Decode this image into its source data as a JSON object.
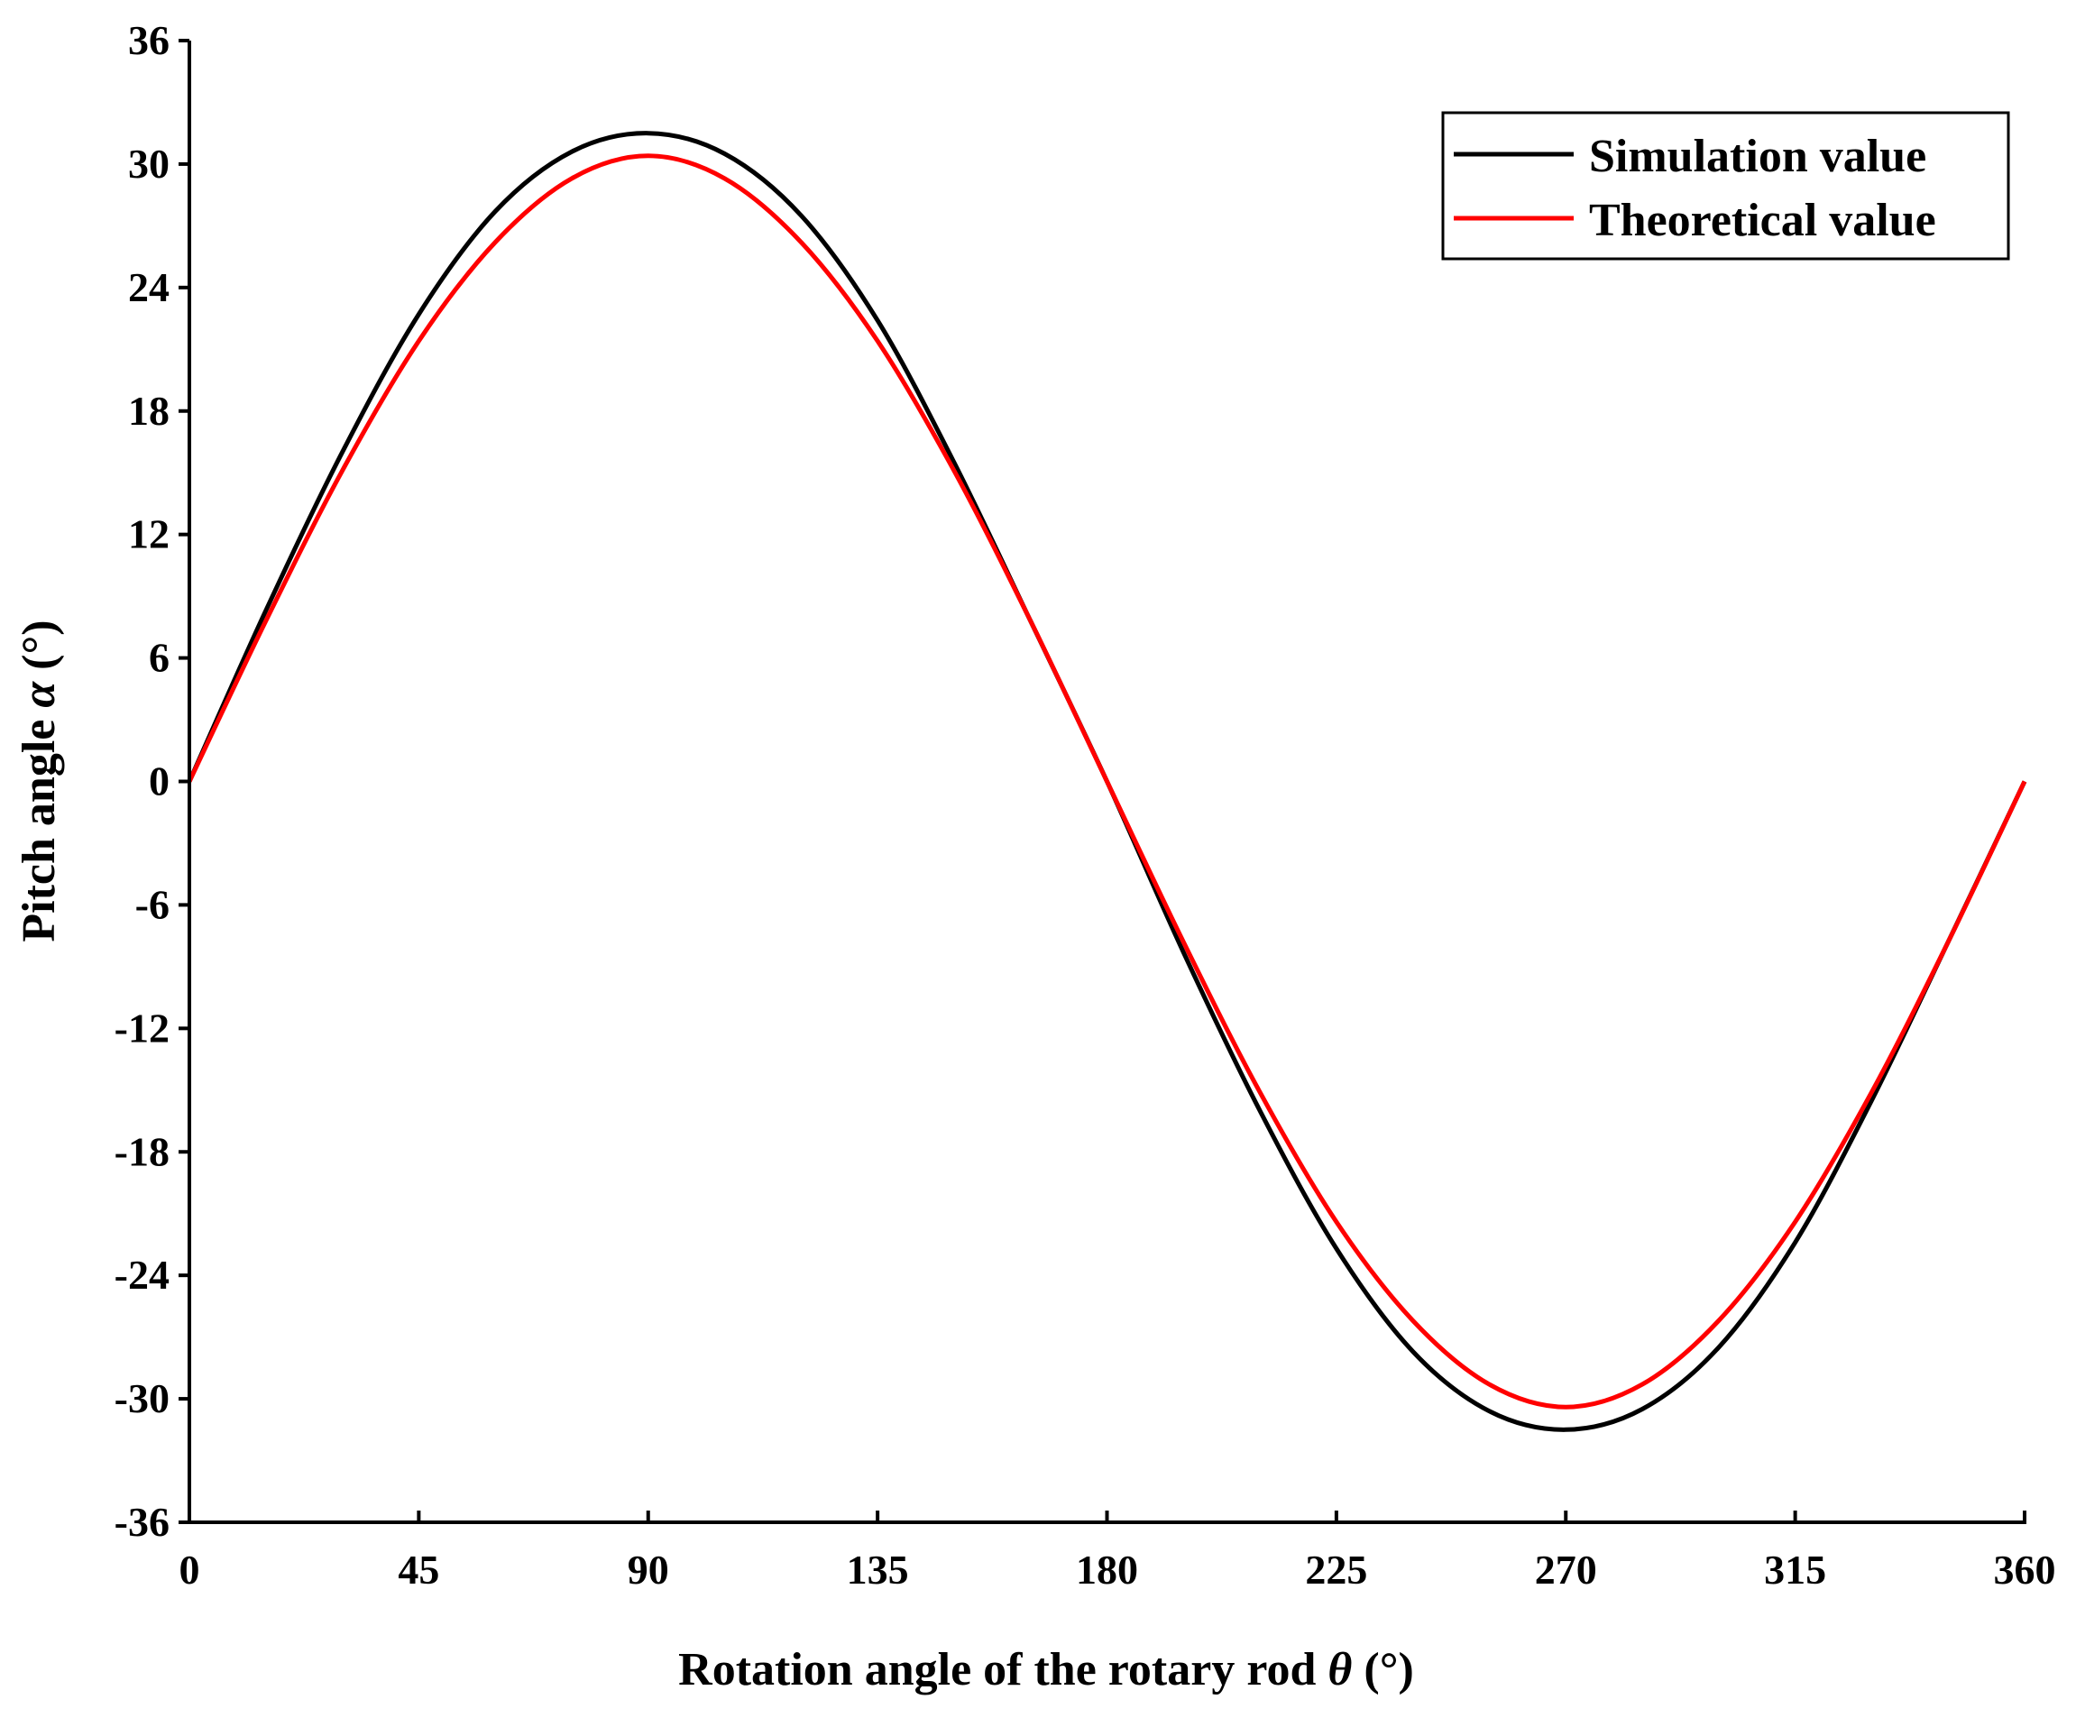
{
  "chart_data": {
    "type": "line",
    "title": "",
    "xlabel": "Rotation angle of the rotary rod",
    "xlabel_symbol": "θ",
    "xlabel_unit": " (°)",
    "ylabel": "Pitch angle",
    "ylabel_symbol": "α",
    "ylabel_unit": " (°)",
    "xlim": [
      0,
      360
    ],
    "ylim": [
      -36,
      36
    ],
    "xticks": [
      0,
      45,
      90,
      135,
      180,
      225,
      270,
      315,
      360
    ],
    "yticks": [
      -36,
      -30,
      -24,
      -18,
      -12,
      -6,
      0,
      6,
      12,
      18,
      24,
      30,
      36
    ],
    "grid": false,
    "legend_position": "top-right",
    "x": [
      0,
      15,
      30,
      45,
      60,
      75,
      90,
      105,
      120,
      135,
      150,
      165,
      180,
      195,
      210,
      225,
      240,
      255,
      270,
      285,
      300,
      315,
      330,
      345,
      360
    ],
    "series": [
      {
        "name": "Simulation value",
        "color": "#000000",
        "values": [
          0,
          8.3,
          16.0,
          22.7,
          27.7,
          30.6,
          31.5,
          30.5,
          27.5,
          22.4,
          15.5,
          7.8,
          0,
          -8.3,
          -16.0,
          -22.7,
          -27.7,
          -30.6,
          -31.5,
          -30.5,
          -27.5,
          -22.4,
          -15.5,
          -7.8,
          0
        ]
      },
      {
        "name": "Theoretical value",
        "color": "#ff0000",
        "values": [
          0,
          7.8,
          15.1,
          21.4,
          26.2,
          29.3,
          30.4,
          29.3,
          26.2,
          21.4,
          15.1,
          7.8,
          0,
          -7.8,
          -15.1,
          -21.4,
          -26.2,
          -29.3,
          -30.4,
          -29.3,
          -26.2,
          -21.4,
          -15.1,
          -7.8,
          0
        ]
      }
    ]
  }
}
